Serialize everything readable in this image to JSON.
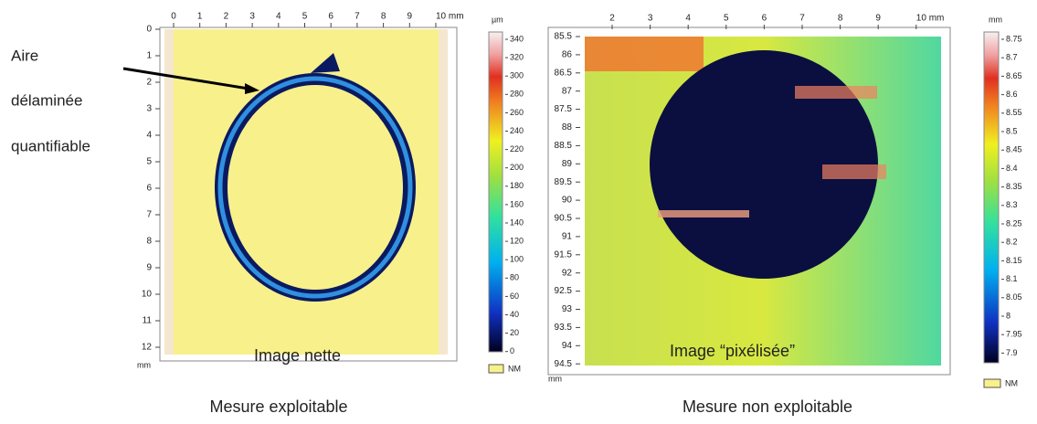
{
  "annotation": {
    "lines": [
      "Aire",
      "délaminée",
      "quantifiable"
    ]
  },
  "left_panel": {
    "x_ticks": [
      0,
      1,
      2,
      3,
      4,
      5,
      6,
      7,
      8,
      9,
      "10 mm"
    ],
    "y_ticks": [
      0,
      1,
      2,
      3,
      4,
      5,
      6,
      7,
      8,
      9,
      10,
      11,
      12
    ],
    "axis_unit": "mm",
    "colorbar": {
      "unit": "µm",
      "ticks": [
        340,
        320,
        300,
        280,
        260,
        240,
        220,
        200,
        180,
        160,
        140,
        120,
        100,
        80,
        60,
        40,
        20,
        0
      ],
      "nm_label": "NM"
    },
    "overlay": "Image nette",
    "caption": "Mesure exploitable"
  },
  "right_panel": {
    "x_ticks": [
      2,
      3,
      4,
      5,
      6,
      7,
      8,
      9,
      "10 mm"
    ],
    "y_ticks": [
      85.5,
      86,
      86.5,
      87,
      87.5,
      88,
      88.5,
      89,
      89.5,
      90,
      90.5,
      91,
      91.5,
      92,
      92.5,
      93,
      93.5,
      94,
      94.5
    ],
    "axis_unit": "mm",
    "colorbar": {
      "unit": "mm",
      "ticks": [
        8.75,
        8.7,
        8.65,
        8.6,
        8.55,
        8.5,
        8.45,
        8.4,
        8.35,
        8.3,
        8.25,
        8.2,
        8.15,
        8.1,
        8.05,
        8,
        7.95,
        7.9
      ],
      "nm_label": "NM"
    },
    "overlay": "Image “pixélisée”",
    "caption": "Mesure non exploitable"
  }
}
